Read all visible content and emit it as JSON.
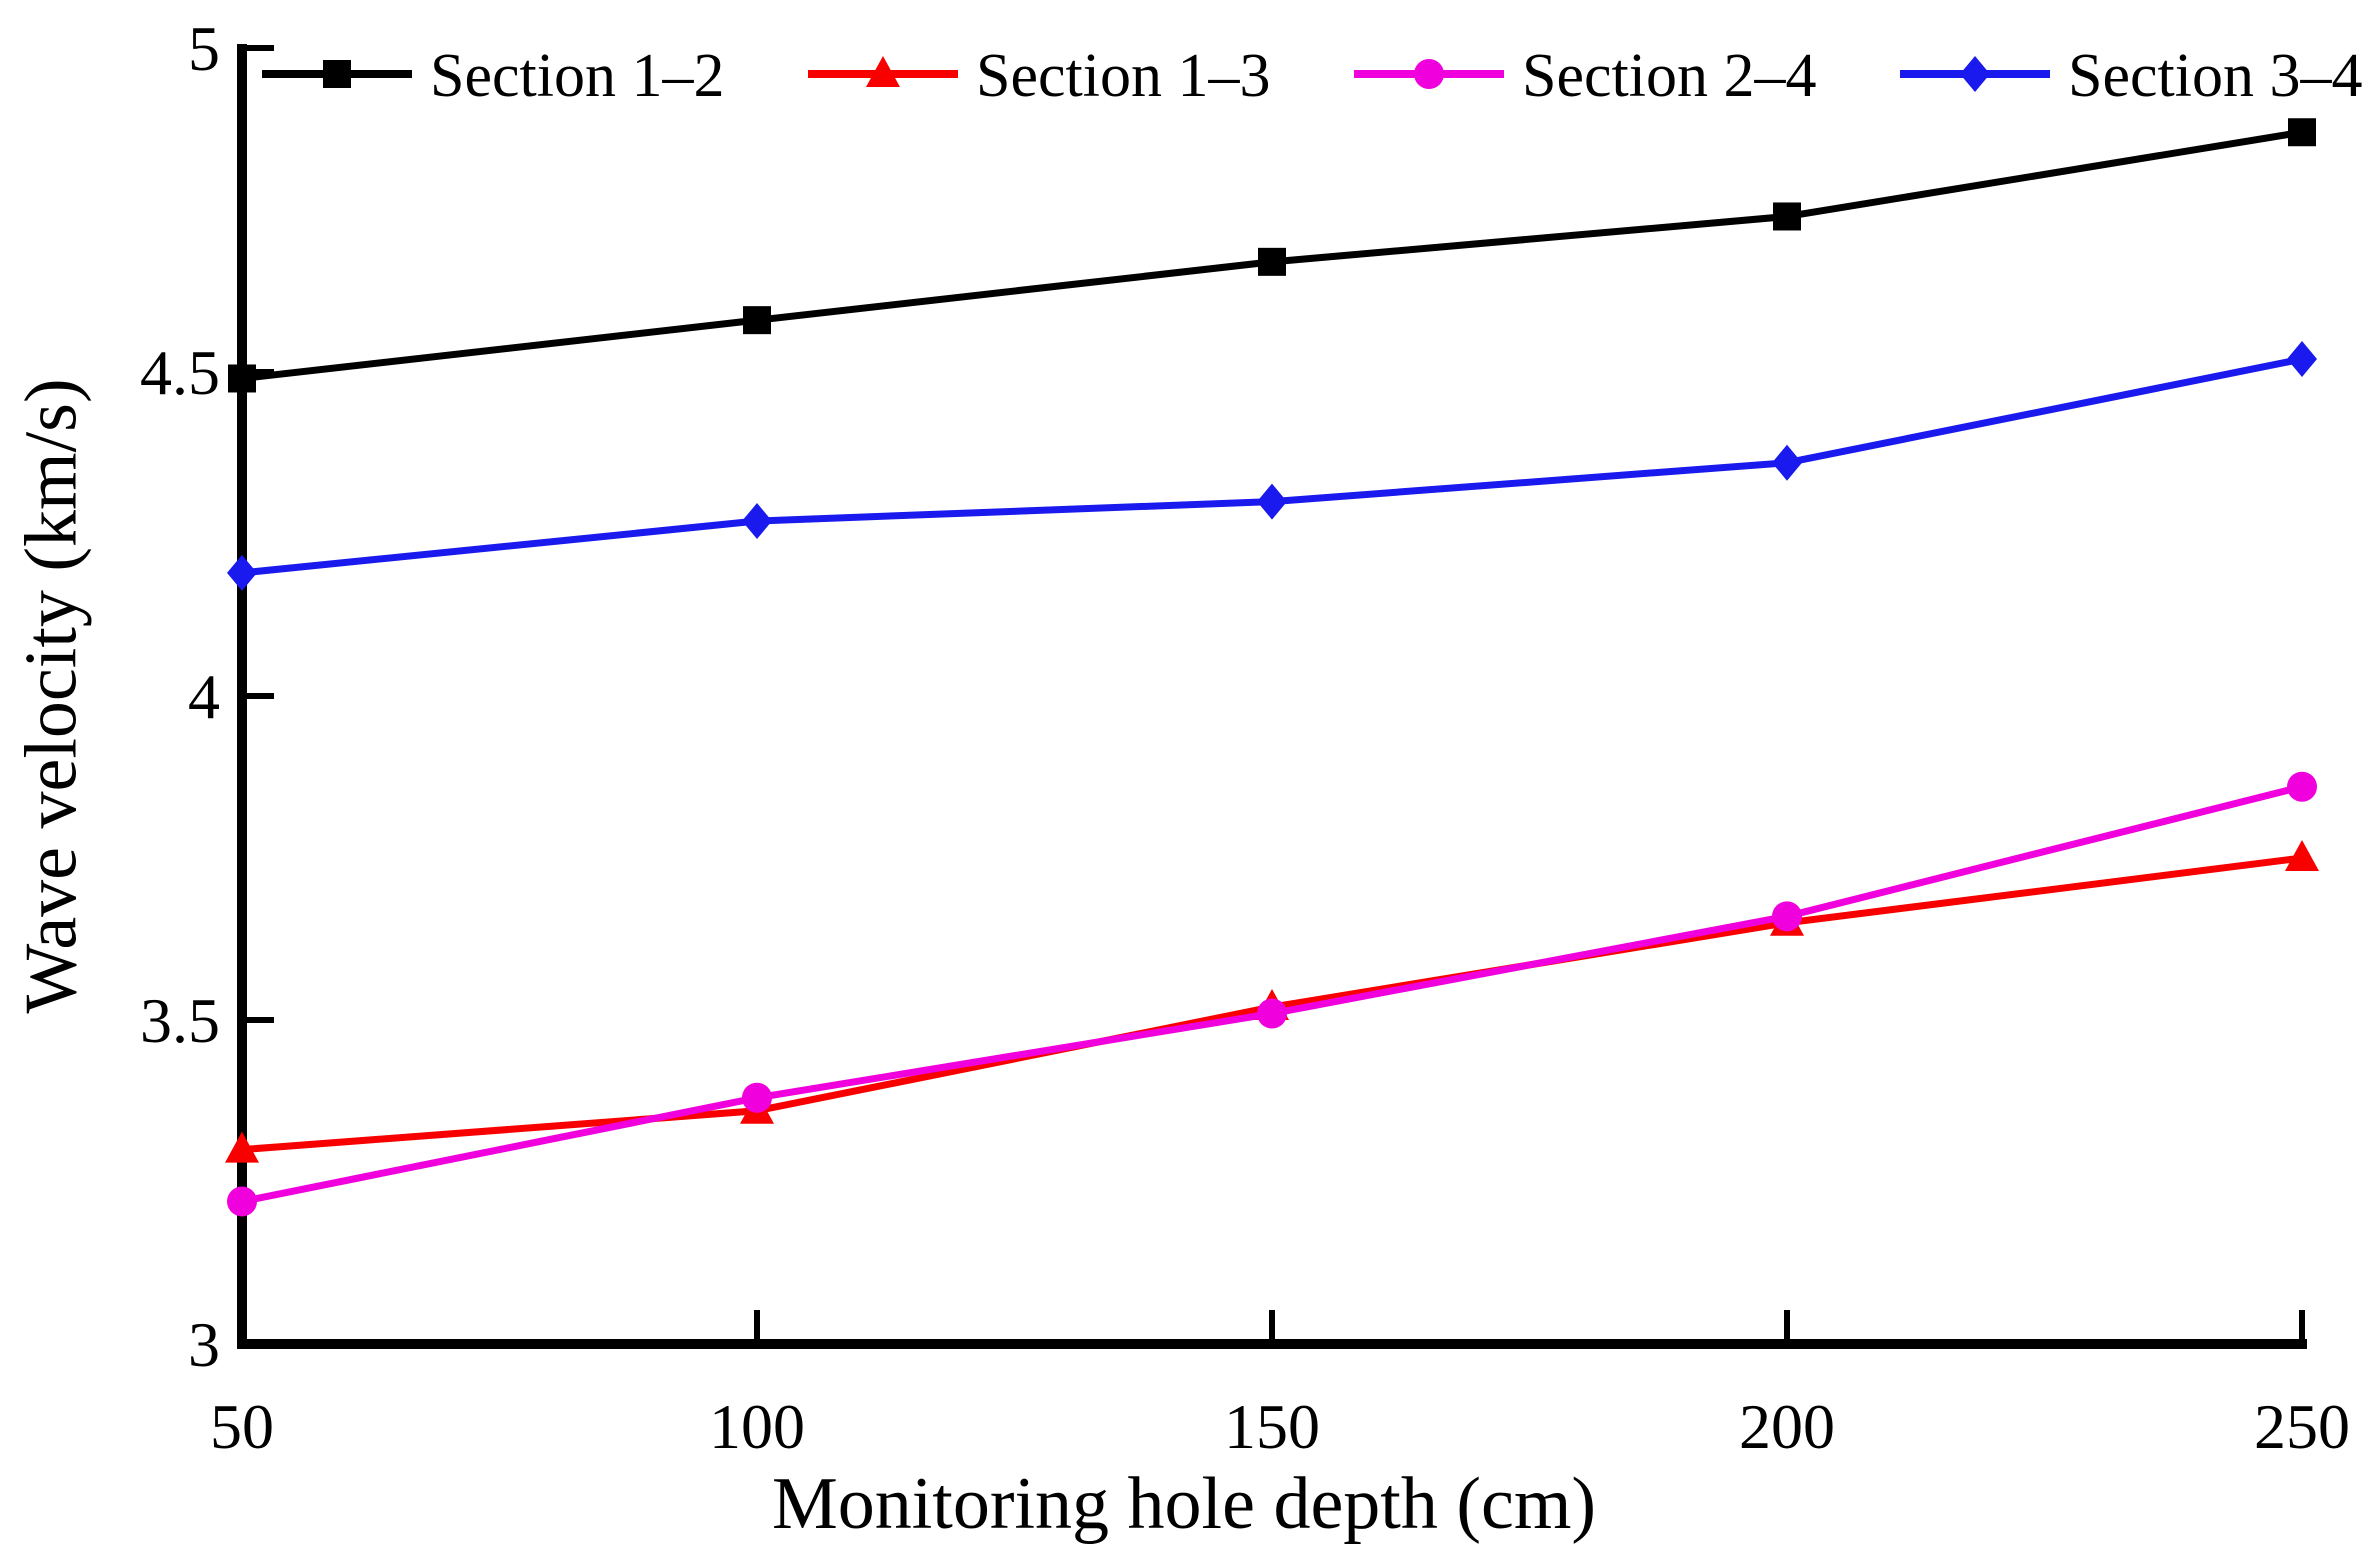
{
  "chart_data": {
    "type": "line",
    "title": "",
    "xlabel": "Monitoring hole depth (cm)",
    "ylabel": "Wave velocity (km/s)",
    "x": [
      50,
      100,
      150,
      200,
      250
    ],
    "xlim": [
      50,
      250
    ],
    "ylim": [
      3,
      5
    ],
    "x_ticks": [
      50,
      100,
      150,
      200,
      250
    ],
    "y_ticks": [
      5,
      4.5,
      4,
      3.5,
      3
    ],
    "grid": false,
    "legend_position": "top",
    "series": [
      {
        "name": "Section 1–2",
        "color": "#000000",
        "marker": "square",
        "values": [
          4.49,
          4.58,
          4.67,
          4.74,
          4.87
        ]
      },
      {
        "name": "Section 1–3",
        "color": "#f80000",
        "marker": "triangle",
        "values": [
          3.3,
          3.36,
          3.52,
          3.65,
          3.75
        ]
      },
      {
        "name": "Section 2–4",
        "color": "#f000dc",
        "marker": "circle",
        "values": [
          3.22,
          3.38,
          3.51,
          3.66,
          3.86
        ]
      },
      {
        "name": "Section 3–4",
        "color": "#1a1aee",
        "marker": "diamond",
        "values": [
          4.19,
          4.27,
          4.3,
          4.36,
          4.52
        ]
      }
    ]
  }
}
